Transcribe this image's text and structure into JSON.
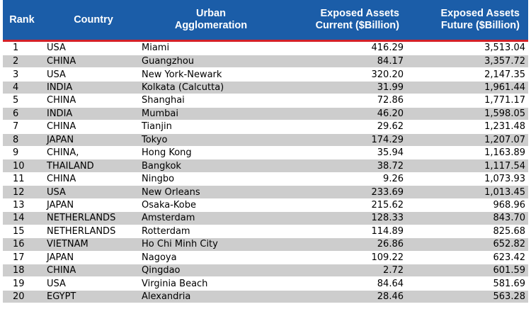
{
  "header": {
    "rank": "Rank",
    "country": "Country",
    "city_line1": "Urban",
    "city_line2": "Agglomeration",
    "current_line1": "Exposed Assets",
    "current_line2": "Current  ($Billion)",
    "future_line1": "Exposed Assets",
    "future_line2": "Future ($Billion)"
  },
  "colors": {
    "header_bg": "#1b5da8",
    "header_text": "#ffffff",
    "rule": "#d42028",
    "stripe": "#cdcdcd"
  },
  "rows": [
    {
      "rank": "1",
      "country": "USA",
      "city": "Miami",
      "current": "416.29",
      "future": "3,513.04"
    },
    {
      "rank": "2",
      "country": "CHINA",
      "city": "Guangzhou",
      "current": "84.17",
      "future": "3,357.72"
    },
    {
      "rank": "3",
      "country": "USA",
      "city": "New York-Newark",
      "current": "320.20",
      "future": "2,147.35"
    },
    {
      "rank": "4",
      "country": "INDIA",
      "city": "Kolkata (Calcutta)",
      "current": "31.99",
      "future": "1,961.44"
    },
    {
      "rank": "5",
      "country": "CHINA",
      "city": "Shanghai",
      "current": "72.86",
      "future": "1,771.17"
    },
    {
      "rank": "6",
      "country": "INDIA",
      "city": "Mumbai",
      "current": "46.20",
      "future": "1,598.05"
    },
    {
      "rank": "7",
      "country": "CHINA",
      "city": "Tianjin",
      "current": "29.62",
      "future": "1,231.48"
    },
    {
      "rank": "8",
      "country": "JAPAN",
      "city": "Tokyo",
      "current": "174.29",
      "future": "1,207.07"
    },
    {
      "rank": "9",
      "country": "CHINA,",
      "city": "Hong Kong",
      "current": "35.94",
      "future": "1,163.89"
    },
    {
      "rank": "10",
      "country": "THAILAND",
      "city": "Bangkok",
      "current": "38.72",
      "future": "1,117.54"
    },
    {
      "rank": "11",
      "country": "CHINA",
      "city": "Ningbo",
      "current": "9.26",
      "future": "1,073.93"
    },
    {
      "rank": "12",
      "country": "USA",
      "city": "New Orleans",
      "current": "233.69",
      "future": "1,013.45"
    },
    {
      "rank": "13",
      "country": "JAPAN",
      "city": "Osaka-Kobe",
      "current": "215.62",
      "future": "968.96"
    },
    {
      "rank": "14",
      "country": "NETHERLANDS",
      "city": "Amsterdam",
      "current": "128.33",
      "future": "843.70"
    },
    {
      "rank": "15",
      "country": "NETHERLANDS",
      "city": "Rotterdam",
      "current": "114.89",
      "future": "825.68"
    },
    {
      "rank": "16",
      "country": "VIETNAM",
      "city": "Ho Chi Minh City",
      "current": "26.86",
      "future": "652.82"
    },
    {
      "rank": "17",
      "country": "JAPAN",
      "city": "Nagoya",
      "current": "109.22",
      "future": "623.42"
    },
    {
      "rank": "18",
      "country": "CHINA",
      "city": "Qingdao",
      "current": "2.72",
      "future": "601.59"
    },
    {
      "rank": "19",
      "country": "USA",
      "city": "Virginia Beach",
      "current": "84.64",
      "future": "581.69"
    },
    {
      "rank": "20",
      "country": "EGYPT",
      "city": "Alexandria",
      "current": "28.46",
      "future": "563.28"
    }
  ]
}
